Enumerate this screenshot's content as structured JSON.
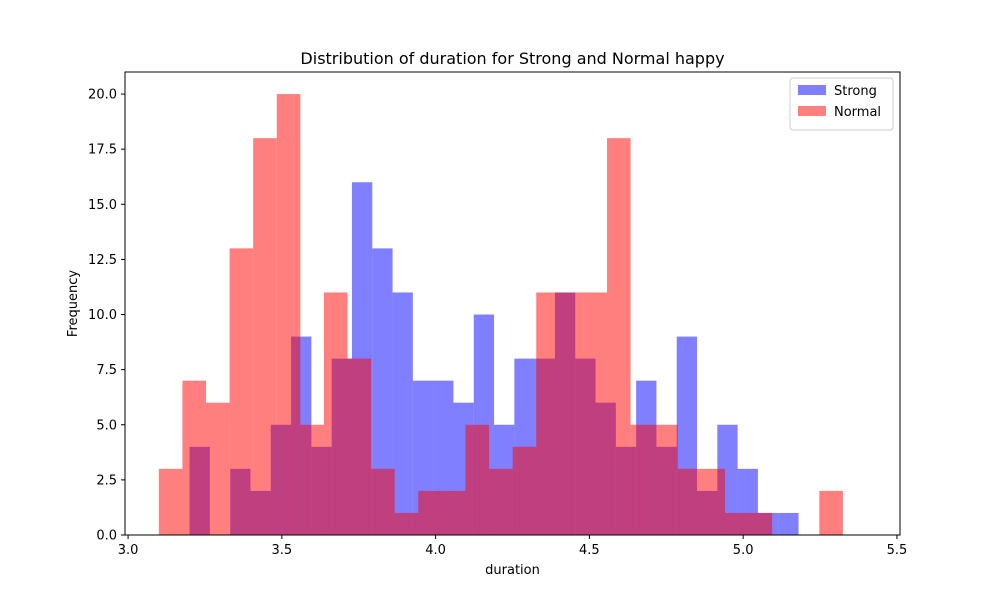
{
  "chart_data": {
    "type": "histogram",
    "title": "Distribution of duration for Strong and Normal happy",
    "xlabel": "duration",
    "ylabel": "Frequency",
    "xlim": [
      2.99,
      5.51
    ],
    "ylim": [
      0,
      21
    ],
    "xticks": [
      {
        "value": 3.0,
        "label": "3.0"
      },
      {
        "value": 3.5,
        "label": "3.5"
      },
      {
        "value": 4.0,
        "label": "4.0"
      },
      {
        "value": 4.5,
        "label": "4.5"
      },
      {
        "value": 5.0,
        "label": "5.0"
      },
      {
        "value": 5.5,
        "label": "5.5"
      }
    ],
    "yticks": [
      {
        "value": 0,
        "label": "0.0"
      },
      {
        "value": 2.5,
        "label": "2.5"
      },
      {
        "value": 5,
        "label": "5.0"
      },
      {
        "value": 7.5,
        "label": "7.5"
      },
      {
        "value": 10,
        "label": "10.0"
      },
      {
        "value": 12.5,
        "label": "12.5"
      },
      {
        "value": 15,
        "label": "15.0"
      },
      {
        "value": 17.5,
        "label": "17.5"
      },
      {
        "value": 20,
        "label": "20.0"
      }
    ],
    "legend_position": "top-right",
    "grid": false,
    "series": [
      {
        "name": "Strong",
        "color": "#0000ff",
        "alpha": 0.5,
        "bin_start": 3.2,
        "bin_width": 0.066,
        "counts": [
          4,
          0,
          3,
          2,
          5,
          9,
          4,
          8,
          16,
          13,
          11,
          7,
          7,
          6,
          10,
          5,
          8,
          8,
          11,
          8,
          6,
          4,
          7,
          4,
          9,
          2,
          5,
          3,
          1,
          1
        ]
      },
      {
        "name": "Normal",
        "color": "#ff0000",
        "alpha": 0.5,
        "bin_start": 3.1,
        "bin_width": 0.0767,
        "counts": [
          3,
          7,
          6,
          13,
          18,
          20,
          5,
          11,
          8,
          3,
          1,
          2,
          2,
          5,
          3,
          4,
          11,
          11,
          11,
          18,
          5,
          5,
          3,
          3,
          1,
          1,
          0,
          0,
          2
        ]
      }
    ]
  }
}
